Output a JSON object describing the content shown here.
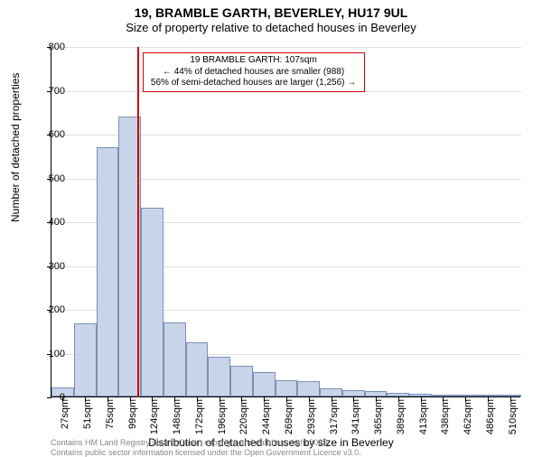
{
  "title_main": "19, BRAMBLE GARTH, BEVERLEY, HU17 9UL",
  "title_sub": "Size of property relative to detached houses in Beverley",
  "ylabel": "Number of detached properties",
  "xlabel": "Distribution of detached houses by size in Beverley",
  "footer_line1": "Contains HM Land Registry data © Crown copyright and database right 2025.",
  "footer_line2": "Contains public sector information licensed under the Open Government Licence v3.0.",
  "chart": {
    "type": "histogram",
    "ylim": [
      0,
      800
    ],
    "ytick_step": 100,
    "bar_fill": "#c9d4ea",
    "bar_stroke": "#7a8fb8",
    "grid_color": "#e0e0e0",
    "background_color": "#ffffff",
    "title_fontsize": 14,
    "label_fontsize": 12,
    "tick_fontsize": 11,
    "x_categories": [
      "27sqm",
      "51sqm",
      "75sqm",
      "99sqm",
      "124sqm",
      "148sqm",
      "172sqm",
      "196sqm",
      "220sqm",
      "244sqm",
      "269sqm",
      "293sqm",
      "317sqm",
      "341sqm",
      "365sqm",
      "389sqm",
      "413sqm",
      "438sqm",
      "462sqm",
      "486sqm",
      "510sqm"
    ],
    "values": [
      20,
      168,
      570,
      640,
      430,
      170,
      124,
      90,
      70,
      55,
      38,
      36,
      18,
      14,
      12,
      8,
      6,
      2,
      5,
      1,
      4
    ],
    "marker": {
      "x_value_sqm": 107,
      "color": "#d00000",
      "line_width": 2,
      "callout_lines": [
        "19 BRAMBLE GARTH: 107sqm",
        "← 44% of detached houses are smaller (988)",
        "56% of semi-detached houses are larger (1,256) →"
      ],
      "callout_border_color": "#d00000",
      "callout_bg": "rgba(255,255,255,0.92)",
      "callout_fontsize": 10
    }
  }
}
